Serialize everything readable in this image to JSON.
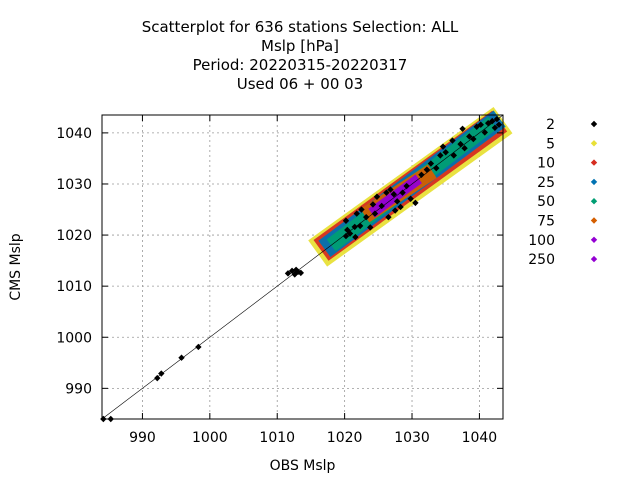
{
  "chart_data": {
    "type": "scatter",
    "title_lines": [
      "Scatterplot for  636 stations Selection: ALL",
      "Mslp [hPa]",
      "Period: 20220315-20220317",
      "Used  06 + 00 03"
    ],
    "xlabel": "OBS Mslp",
    "ylabel": "CMS Mslp",
    "xlim": [
      984,
      1043.5
    ],
    "ylim": [
      984,
      1043.5
    ],
    "x_ticks": [
      990,
      1000,
      1010,
      1020,
      1030,
      1040
    ],
    "y_ticks": [
      990,
      1000,
      1010,
      1020,
      1030,
      1040
    ],
    "grid": true,
    "legend_position": "right",
    "diagonal_line": true,
    "bands": [
      {
        "name": "5",
        "color": "#e8e037",
        "from": [
          1016,
          1016.4
        ],
        "to": [
          1043.5,
          1042.5
        ],
        "halfwidth": 2.4
      },
      {
        "name": "10",
        "color": "#d62d20",
        "from": [
          1016.5,
          1017
        ],
        "to": [
          1043,
          1042.3
        ],
        "halfwidth": 1.9
      },
      {
        "name": "25",
        "color": "#0072b2",
        "from": [
          1017,
          1017.3
        ],
        "to": [
          1043,
          1042.8
        ],
        "halfwidth": 1.5
      },
      {
        "name": "50",
        "color": "#009e73",
        "from": [
          1018,
          1018
        ],
        "to": [
          1042,
          1042
        ],
        "halfwidth": 1.1
      },
      {
        "name": "75",
        "color": "#d55e00",
        "from": [
          1023,
          1023.8
        ],
        "to": [
          1033,
          1032.5
        ],
        "halfwidth": 1.2
      },
      {
        "name": "100",
        "color": "#9400d3",
        "from": [
          1024,
          1024.3
        ],
        "to": [
          1031,
          1031
        ],
        "halfwidth": 0.8
      },
      {
        "name": "250",
        "color": "#9400d3",
        "from": [
          1025,
          1025.2
        ],
        "to": [
          1030,
          1030
        ],
        "halfwidth": 0.5
      }
    ],
    "series": [
      {
        "name": "2",
        "color": "#000000",
        "points": [
          [
            984.2,
            984.0
          ],
          [
            985.3,
            984.0
          ],
          [
            992.2,
            992.0
          ],
          [
            992.8,
            992.9
          ],
          [
            995.8,
            996.0
          ],
          [
            998.3,
            998.1
          ],
          [
            1011.6,
            1012.5
          ],
          [
            1012.2,
            1013.0
          ],
          [
            1012.6,
            1012.3
          ],
          [
            1013.1,
            1012.8
          ],
          [
            1013.5,
            1012.6
          ],
          [
            1012.8,
            1013.2
          ],
          [
            1020.2,
            1019.8
          ],
          [
            1020.8,
            1020.3
          ],
          [
            1021.6,
            1019.6
          ],
          [
            1020.4,
            1021.0
          ],
          [
            1020.2,
            1022.8
          ],
          [
            1021.8,
            1024.2
          ],
          [
            1022.5,
            1025.0
          ],
          [
            1023.2,
            1023.5
          ],
          [
            1022.3,
            1021.8
          ],
          [
            1021.5,
            1021.6
          ],
          [
            1023.8,
            1021.5
          ],
          [
            1024.5,
            1024.2
          ],
          [
            1024.2,
            1026.0
          ],
          [
            1024.8,
            1027.5
          ],
          [
            1025.5,
            1025.7
          ],
          [
            1026.2,
            1028.3
          ],
          [
            1026.8,
            1028.9
          ],
          [
            1027.3,
            1028.0
          ],
          [
            1027.8,
            1026.6
          ],
          [
            1028.6,
            1028.3
          ],
          [
            1029.2,
            1029.6
          ],
          [
            1028.3,
            1025.5
          ],
          [
            1027.5,
            1024.8
          ],
          [
            1026.5,
            1023.5
          ],
          [
            1029.8,
            1027.1
          ],
          [
            1030.5,
            1026.3
          ],
          [
            1031.4,
            1031.8
          ],
          [
            1032.2,
            1032.8
          ],
          [
            1032.8,
            1034.0
          ],
          [
            1033.6,
            1033.1
          ],
          [
            1034.2,
            1035.6
          ],
          [
            1035.0,
            1036.2
          ],
          [
            1036.2,
            1035.6
          ],
          [
            1037.2,
            1037.8
          ],
          [
            1037.8,
            1037.0
          ],
          [
            1038.5,
            1039.3
          ],
          [
            1039.1,
            1038.8
          ],
          [
            1039.6,
            1041.2
          ],
          [
            1040.2,
            1041.6
          ],
          [
            1040.8,
            1040.1
          ],
          [
            1041.3,
            1041.9
          ],
          [
            1041.9,
            1042.3
          ],
          [
            1042.3,
            1041.0
          ],
          [
            1042.6,
            1042.7
          ],
          [
            1042.9,
            1041.6
          ],
          [
            1037.5,
            1040.8
          ],
          [
            1036.0,
            1038.5
          ],
          [
            1034.6,
            1037.3
          ]
        ]
      },
      {
        "name": "5",
        "color": "#e8e037",
        "points": []
      },
      {
        "name": "10",
        "color": "#d62d20",
        "points": []
      },
      {
        "name": "25",
        "color": "#0072b2",
        "points": []
      },
      {
        "name": "50",
        "color": "#009e73",
        "points": []
      },
      {
        "name": "75",
        "color": "#d55e00",
        "points": []
      },
      {
        "name": "100",
        "color": "#9400d3",
        "points": []
      },
      {
        "name": "250",
        "color": "#9400d3",
        "points": []
      }
    ]
  }
}
